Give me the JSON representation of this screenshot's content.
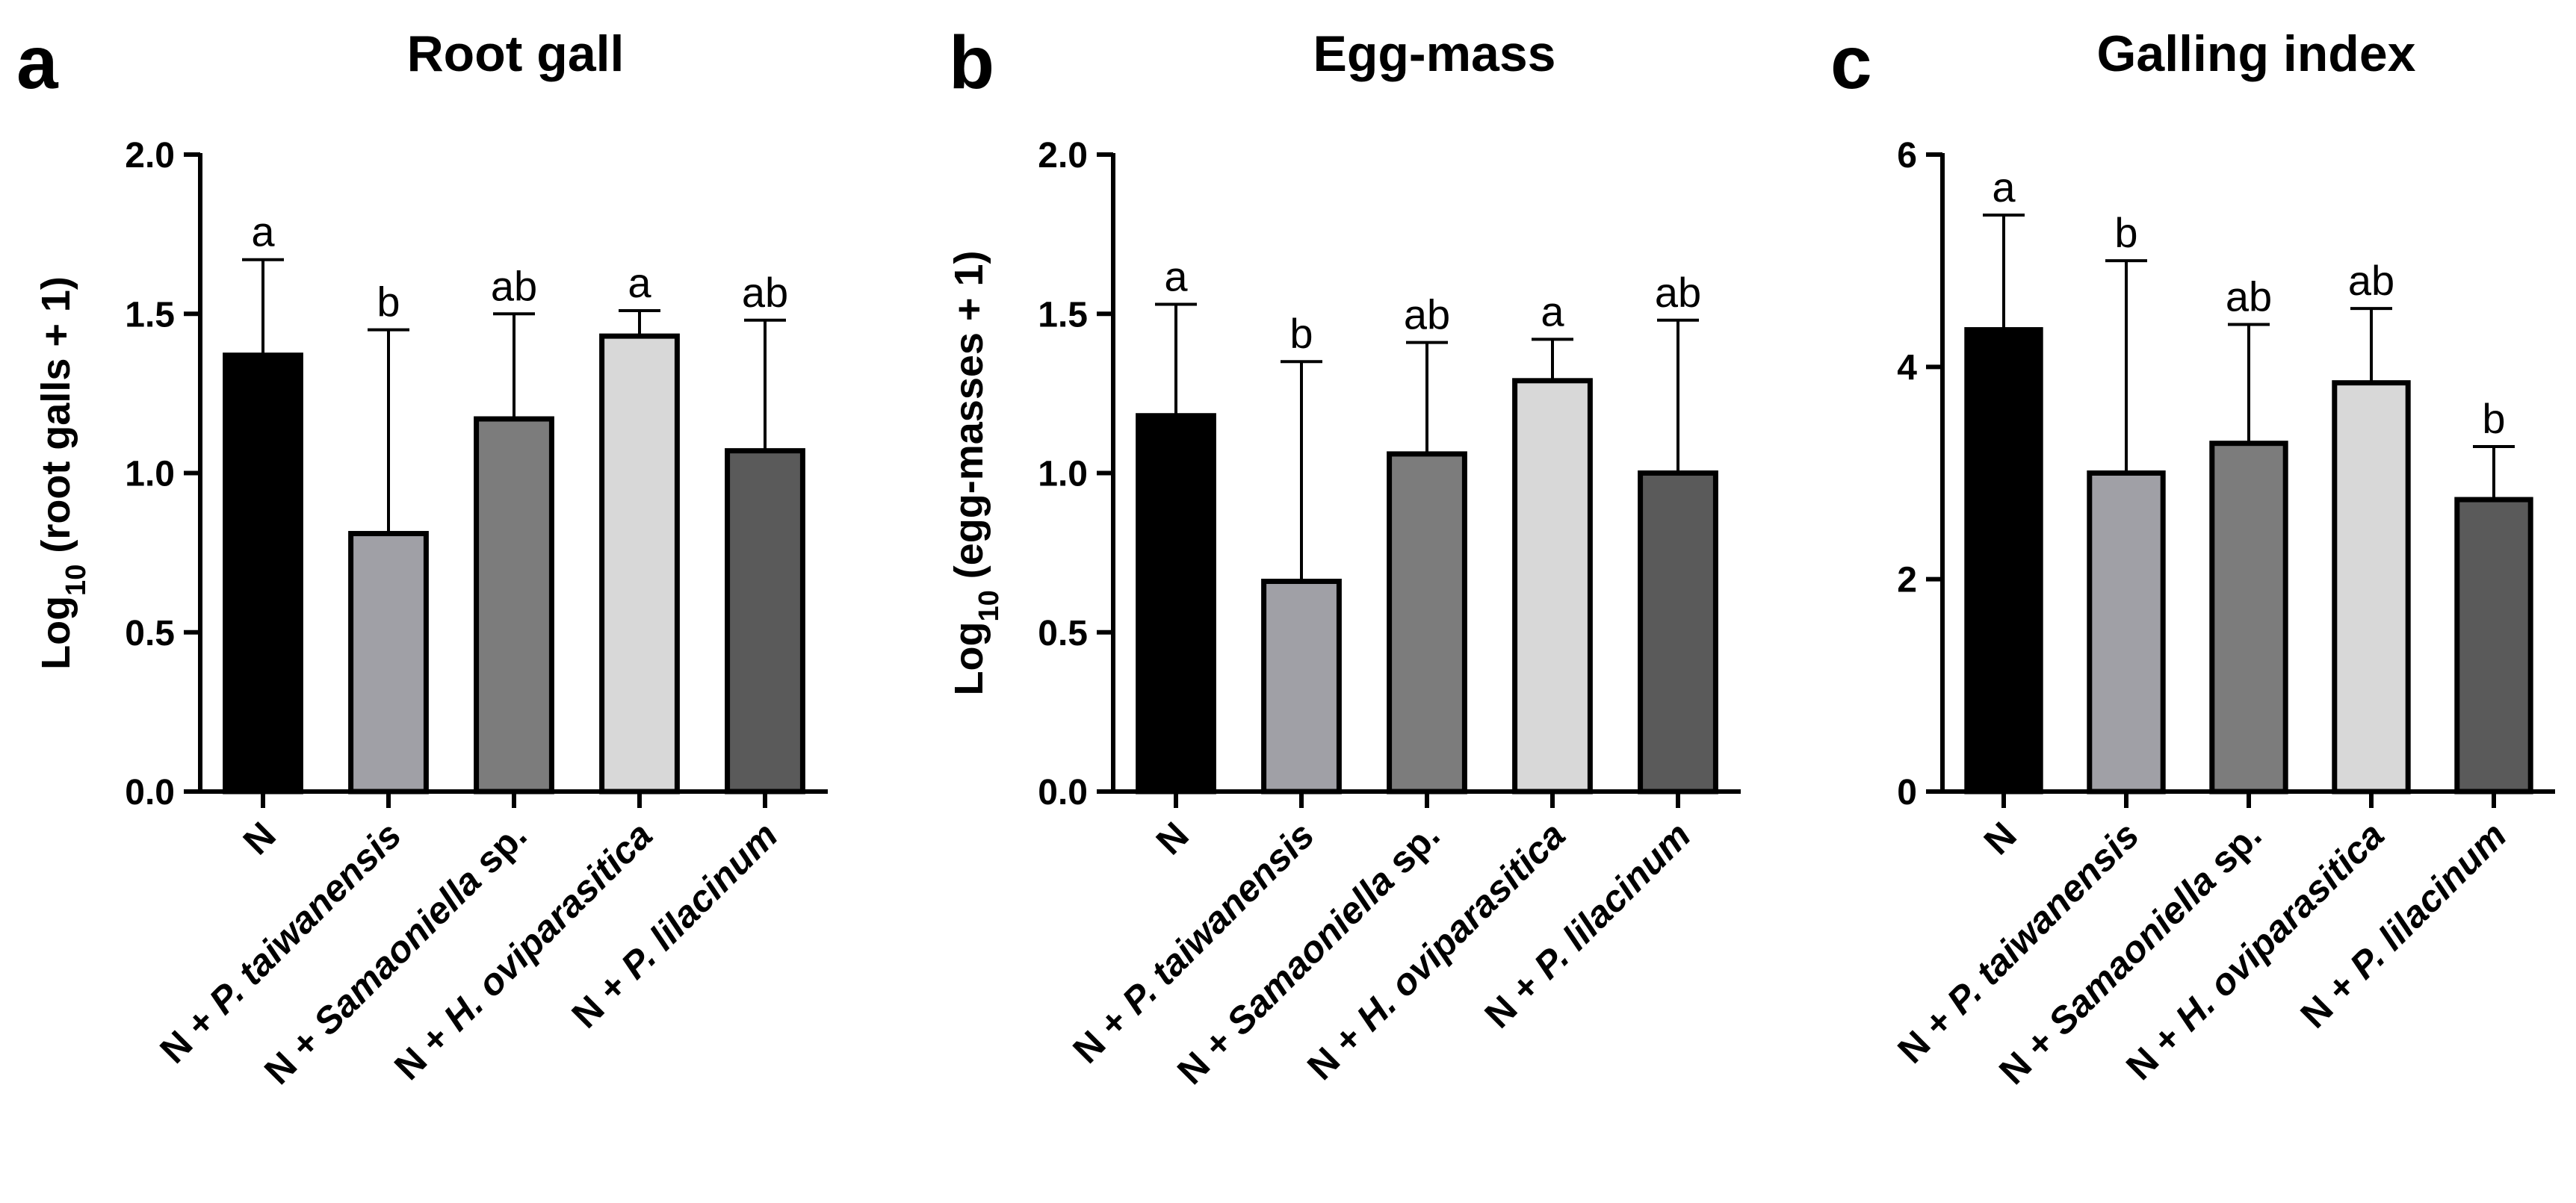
{
  "colors": {
    "bar_N": "#000000",
    "bar_P_taiwanensis": "#a0a0a6",
    "bar_Samaoniella": "#7c7c7c",
    "bar_H_oviparasitica": "#d8d8d8",
    "bar_P_lilacinum": "#5a5a5a",
    "outline": "#000000"
  },
  "category_labels": [
    {
      "prefix": "N",
      "italic": "",
      "suffix": ""
    },
    {
      "prefix": "N + ",
      "italic": "P. taiwanensis",
      "suffix": ""
    },
    {
      "prefix": "N + ",
      "italic": "Samaoniella",
      "suffix": " sp."
    },
    {
      "prefix": "N + ",
      "italic": "H. oviparasitica",
      "suffix": ""
    },
    {
      "prefix": "N + ",
      "italic": "P. lilacinum",
      "suffix": ""
    }
  ],
  "chart_data": [
    {
      "panel": "a",
      "type": "bar",
      "title": "Root gall",
      "ylabel": {
        "prefix": "Log",
        "sub": "10",
        "suffix": " (root galls + 1)"
      },
      "categories": [
        "N",
        "N + P. taiwanensis",
        "N + Samaoniella sp.",
        "N + H. oviparasitica",
        "N + P. lilacinum"
      ],
      "values": [
        1.37,
        0.81,
        1.17,
        1.43,
        1.07
      ],
      "error_upper": [
        1.67,
        1.45,
        1.5,
        1.51,
        1.48
      ],
      "significance": [
        "a",
        "b",
        "ab",
        "a",
        "ab"
      ],
      "ylim": [
        0,
        2.0
      ],
      "yticks": [
        0.0,
        0.5,
        1.0,
        1.5,
        2.0
      ],
      "ytick_labels": [
        "0.0",
        "0.5",
        "1.0",
        "1.5",
        "2.0"
      ],
      "grid": false
    },
    {
      "panel": "b",
      "type": "bar",
      "title": "Egg-mass",
      "ylabel": {
        "prefix": "Log",
        "sub": "10",
        "suffix": " (egg-masses + 1)"
      },
      "categories": [
        "N",
        "N + P. taiwanensis",
        "N + Samaoniella sp.",
        "N + H. oviparasitica",
        "N + P. lilacinum"
      ],
      "values": [
        1.18,
        0.66,
        1.06,
        1.29,
        1.0
      ],
      "error_upper": [
        1.53,
        1.35,
        1.41,
        1.42,
        1.48
      ],
      "significance": [
        "a",
        "b",
        "ab",
        "a",
        "ab"
      ],
      "ylim": [
        0,
        2.0
      ],
      "yticks": [
        0.0,
        0.5,
        1.0,
        1.5,
        2.0
      ],
      "ytick_labels": [
        "0.0",
        "0.5",
        "1.0",
        "1.5",
        "2.0"
      ],
      "grid": false
    },
    {
      "panel": "c",
      "type": "bar",
      "title": "Galling index",
      "ylabel": null,
      "categories": [
        "N",
        "N + P. taiwanensis",
        "N + Samaoniella sp.",
        "N + H. oviparasitica",
        "N + P. lilacinum"
      ],
      "values": [
        4.35,
        3.0,
        3.28,
        3.85,
        2.75
      ],
      "error_upper": [
        5.43,
        5.0,
        4.4,
        4.55,
        3.25
      ],
      "significance": [
        "a",
        "b",
        "ab",
        "ab",
        "b"
      ],
      "ylim": [
        0,
        6
      ],
      "yticks": [
        0,
        2,
        4,
        6
      ],
      "ytick_labels": [
        "0",
        "2",
        "4",
        "6"
      ],
      "grid": false
    }
  ]
}
